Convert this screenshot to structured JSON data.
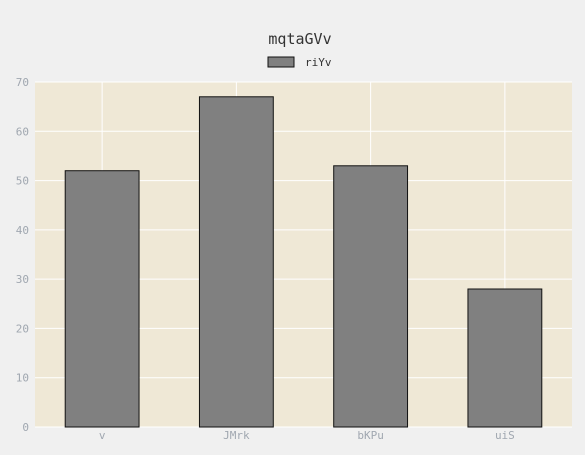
{
  "chart_data": {
    "type": "bar",
    "title": "mqtaGVv",
    "xlabel": "",
    "ylabel": "",
    "categories": [
      "v",
      "JMrk",
      "bKPu",
      "uiS"
    ],
    "series": [
      {
        "name": "riYv",
        "values": [
          52,
          67,
          53,
          28
        ]
      }
    ],
    "ylim": [
      0,
      70
    ],
    "yticks": [
      0,
      10,
      20,
      30,
      40,
      50,
      60,
      70
    ],
    "grid": true,
    "legend_position": "top-center",
    "colors": {
      "bar": "#808080",
      "bar_edge": "#111111",
      "plot_background": "#efe8d6",
      "grid": "#ffffff",
      "figure_background": "#f0f0f0",
      "tick_label": "#a0a7b0"
    }
  }
}
